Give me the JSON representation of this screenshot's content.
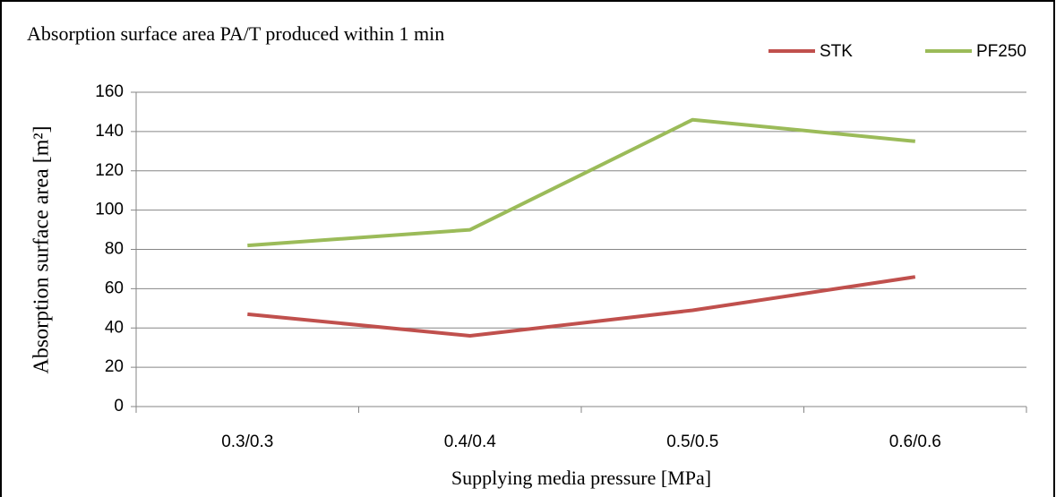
{
  "chart_data": {
    "type": "line",
    "title": "Absorption surface area PA/T produced within 1 min",
    "x_label": "Supplying media pressure [MPa]",
    "y_label": "Absorption surface area [m²]",
    "categories": [
      "0.3/0.3",
      "0.4/0.4",
      "0.5/0.5",
      "0.6/0.6"
    ],
    "series": [
      {
        "name": "STK",
        "color": "#c0504d",
        "values": [
          47,
          36,
          49,
          66
        ]
      },
      {
        "name": "PF250",
        "color": "#9bbb59",
        "values": [
          82,
          90,
          146,
          135
        ]
      }
    ],
    "ylim": [
      0,
      160
    ],
    "yticks": [
      0,
      20,
      40,
      60,
      80,
      100,
      120,
      140,
      160
    ],
    "grid": true,
    "legend": "top-right"
  }
}
